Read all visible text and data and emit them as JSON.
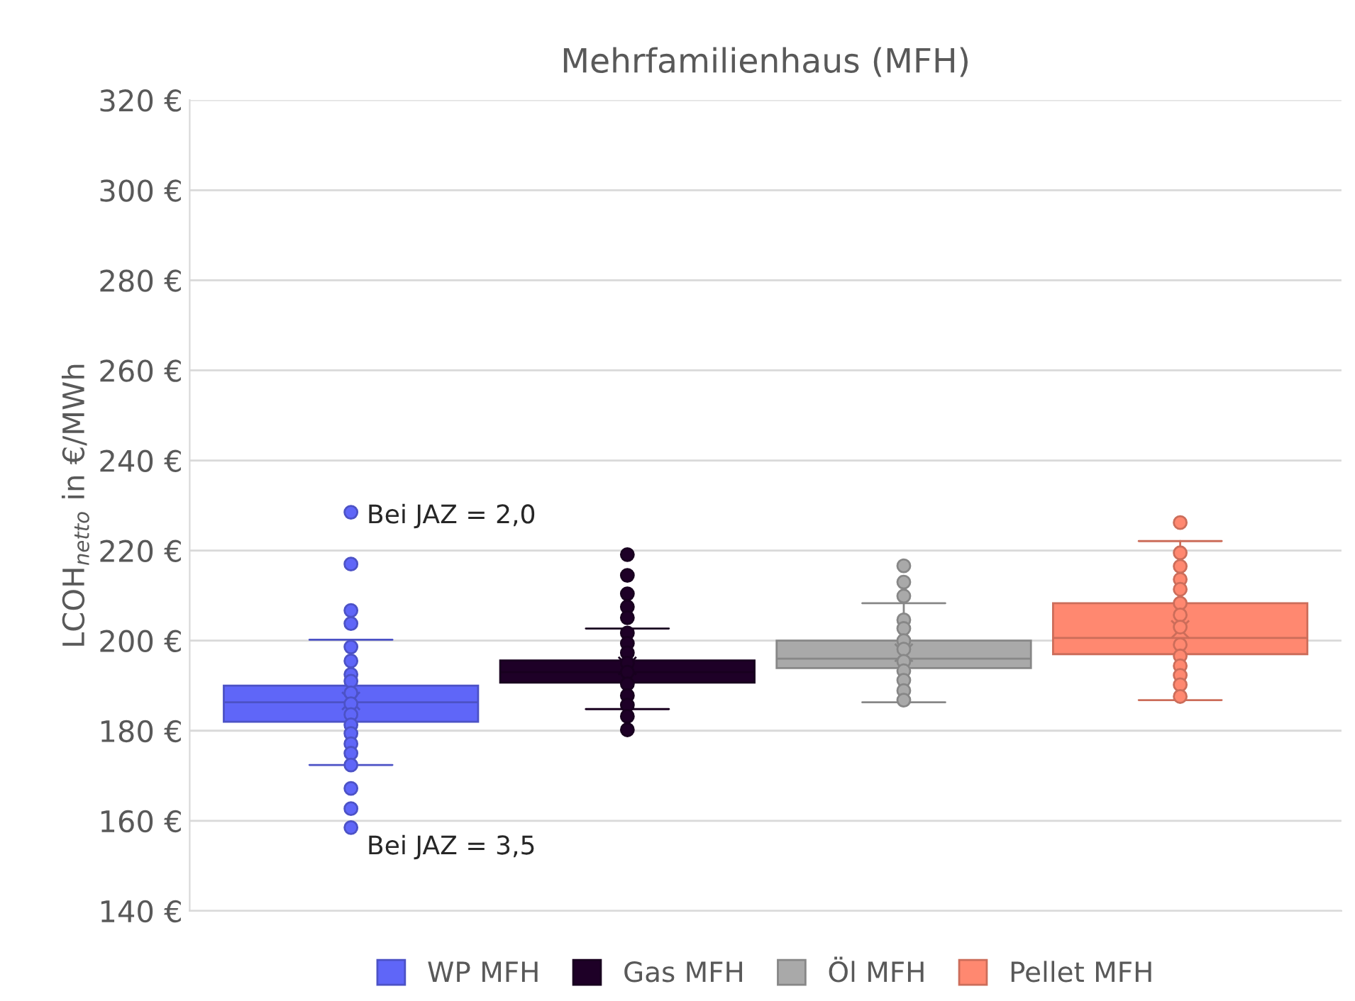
{
  "chart_data": {
    "type": "box",
    "title": "Mehrfamilienhaus (MFH)",
    "ylabel": "LCOH$_{netto}$ in €/MWh",
    "categories": [
      null
    ],
    "series": [
      {
        "name": "WP MFH",
        "color": "#5f66f8",
        "boxes": [
          {
            "low": 172.4,
            "q1": 182,
            "median": 186.3,
            "q3": 190,
            "high": 200.2,
            "mean": 186.6,
            "outliers": [
              228.5,
              217,
              206.7,
              203.8,
              198.6,
              195.5,
              192.5,
              191,
              188.4,
              186,
              183.6,
              181.3,
              179.4,
              177.1,
              175,
              172.4,
              167.2,
              162.7,
              158.5
            ]
          }
        ]
      },
      {
        "name": "Gas MFH",
        "color": "#1e0027",
        "boxes": [
          {
            "low": 184.8,
            "q1": 190.7,
            "median": 193,
            "q3": 195.6,
            "high": 202.7,
            "mean": 194.4,
            "outliers": [
              219.1,
              214.5,
              210.4,
              207.5,
              205.1,
              201.7,
              199.4,
              197.3,
              195,
              193,
              190.4,
              187.8,
              185.7,
              183.2,
              180.2
            ]
          }
        ]
      },
      {
        "name": "Öl MFH",
        "color": "#a9a9a9",
        "boxes": [
          {
            "low": 186.3,
            "q1": 193.9,
            "median": 196,
            "q3": 200,
            "high": 208.3,
            "mean": 197.3,
            "outliers": [
              216.6,
              213,
              209.9,
              204.6,
              202.7,
              200,
              198.1,
              195.4,
              193.3,
              191.2,
              188.9,
              186.8
            ]
          }
        ]
      },
      {
        "name": "Pellet MFH",
        "color": "#ff8870",
        "boxes": [
          {
            "low": 186.8,
            "q1": 197,
            "median": 200.6,
            "q3": 208.3,
            "high": 222.1,
            "mean": 202.5,
            "outliers": [
              226.2,
              219.5,
              216.5,
              213.6,
              211.4,
              208.3,
              205.7,
              203,
              199.1,
              196.6,
              194.4,
              192.3,
              190.2,
              187.6
            ]
          }
        ]
      }
    ],
    "annotations": [
      "Bei JAZ = 2,0",
      "Bei JAZ = 3,5"
    ],
    "ylim": [
      140,
      320
    ],
    "yticks": [
      {
        "value": 140,
        "label": "140 €"
      },
      {
        "value": 160,
        "label": "160 €"
      },
      {
        "value": 180,
        "label": "180 €"
      },
      {
        "value": 200,
        "label": "200 €"
      },
      {
        "value": 220,
        "label": "220 €"
      },
      {
        "value": 240,
        "label": "240 €"
      },
      {
        "value": 260,
        "label": "260 €"
      },
      {
        "value": 280,
        "label": "280 €"
      },
      {
        "value": 300,
        "label": "300 €"
      },
      {
        "value": 320,
        "label": "320 €"
      }
    ],
    "grid": "y",
    "legend": "bottom",
    "tick_labels": "y"
  }
}
